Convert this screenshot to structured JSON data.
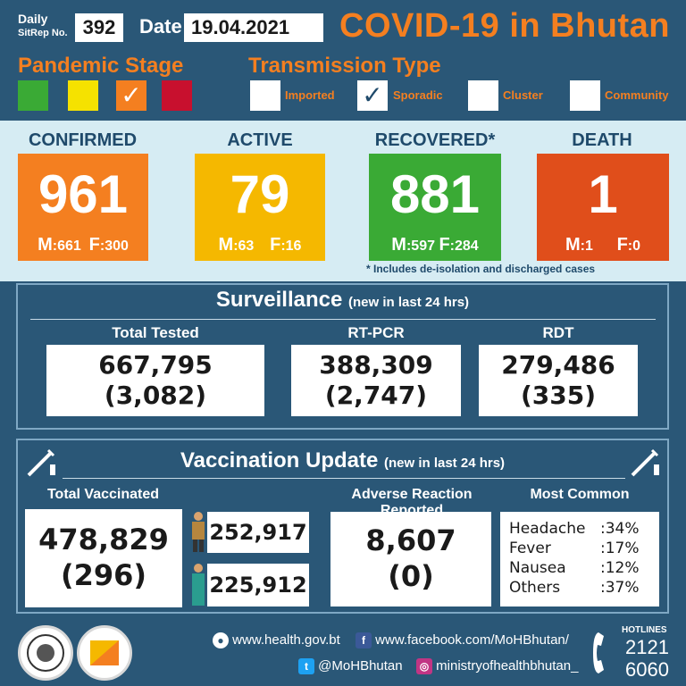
{
  "header": {
    "daily_label": "Daily",
    "sitrep_label": "SitRep No.",
    "sitrep_no": "392",
    "date_label": "Date",
    "date": "19.04.2021",
    "title": "COVID-19 in Bhutan"
  },
  "pandemic_stage": {
    "label": "Pandemic Stage",
    "colors": [
      "#3aaa35",
      "#f5e200",
      "#f47f20",
      "#c8102e"
    ],
    "selected_index": 2,
    "check": "✓"
  },
  "transmission": {
    "label": "Transmission Type",
    "types": [
      "Imported",
      "Sporadic",
      "Cluster",
      "Community"
    ],
    "selected_index": 1,
    "check": "✓"
  },
  "stats": {
    "confirmed": {
      "label": "CONFIRMED",
      "value": "961",
      "m_label": "M",
      "m": ":661",
      "f_label": "F",
      "f": ":300",
      "color": "#f47f20"
    },
    "active": {
      "label": "ACTIVE",
      "value": "79",
      "m_label": "M",
      "m": ":63",
      "f_label": "F",
      "f": ":16",
      "color": "#f5b800"
    },
    "recovered": {
      "label": "RECOVERED*",
      "value": "881",
      "m_label": "M",
      "m": ":597",
      "f_label": "F",
      "f": ":284",
      "color": "#3aaa35"
    },
    "death": {
      "label": "DEATH",
      "value": "1",
      "m_label": "M",
      "m": ":1",
      "f_label": "F",
      "f": ":0",
      "color": "#e04e1b"
    },
    "footnote": "* Includes de-isolation and discharged cases"
  },
  "surveillance": {
    "title": "Surveillance",
    "subtitle": "(new in last 24 hrs)",
    "total_tested": {
      "label": "Total Tested",
      "value": "667,795",
      "new": "(3,082)"
    },
    "rtpcr": {
      "label": "RT-PCR",
      "value": "388,309",
      "new": "(2,747)"
    },
    "rdt": {
      "label": "RDT",
      "value": "279,486",
      "new": "(335)"
    }
  },
  "vaccination": {
    "title": "Vaccination Update",
    "subtitle": "(new in last 24 hrs)",
    "total": {
      "label": "Total Vaccinated",
      "value": "478,829",
      "new": "(296)"
    },
    "male": "252,917",
    "female": "225,912",
    "adverse": {
      "label": "Adverse Reaction Reported",
      "value": "8,607",
      "new": "(0)"
    },
    "most_common": {
      "label": "Most Common",
      "items": [
        {
          "name": "Headache",
          "pct": ":34%"
        },
        {
          "name": "Fever",
          "pct": ":17%"
        },
        {
          "name": "Nausea",
          "pct": ":12%"
        },
        {
          "name": "Others",
          "pct": ":37%"
        }
      ]
    }
  },
  "footer": {
    "website": "www.health.gov.bt",
    "facebook": "www.facebook.com/MoHBhutan/",
    "twitter": "@MoHBhutan",
    "instagram": "ministryofhealthbhutan_",
    "hotlines_label": "HOTLINES",
    "hotline1": "2121",
    "hotline2": "6060"
  }
}
